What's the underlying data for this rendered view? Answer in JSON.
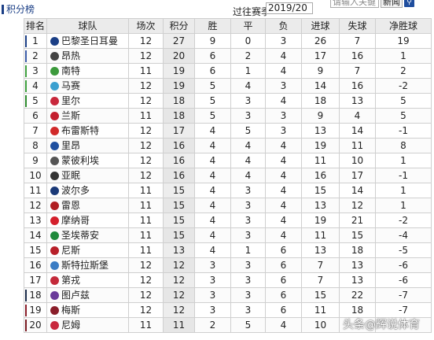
{
  "header": {
    "title": "积分榜",
    "season_label": "过往赛季",
    "season_value": "2019/20",
    "search_placeholder": "请输入关键",
    "news_label": "新闻",
    "search_button": "🔍"
  },
  "table": {
    "columns": [
      "排名",
      "球队",
      "场次",
      "积分",
      "胜",
      "平",
      "负",
      "进球",
      "失球",
      "净胜球"
    ],
    "rows": [
      {
        "rank": "1",
        "team": "巴黎圣日耳曼",
        "played": "12",
        "points": "27",
        "win": "9",
        "draw": "0",
        "loss": "3",
        "gf": "26",
        "ga": "7",
        "gd": "19",
        "marker": "#1b3f86",
        "badge": "#1b3f86"
      },
      {
        "rank": "2",
        "team": "昂热",
        "played": "12",
        "points": "20",
        "win": "6",
        "draw": "2",
        "loss": "4",
        "gf": "17",
        "ga": "16",
        "gd": "1",
        "marker": "#3b5ca8",
        "badge": "#444444"
      },
      {
        "rank": "3",
        "team": "南特",
        "played": "11",
        "points": "19",
        "win": "6",
        "draw": "1",
        "loss": "4",
        "gf": "9",
        "ga": "7",
        "gd": "2",
        "marker": "#3fa03f",
        "badge": "#3c9a3c"
      },
      {
        "rank": "4",
        "team": "马赛",
        "played": "12",
        "points": "19",
        "win": "5",
        "draw": "4",
        "loss": "3",
        "gf": "14",
        "ga": "16",
        "gd": "-2",
        "marker": "#3fa03f",
        "badge": "#3aa0d0"
      },
      {
        "rank": "5",
        "team": "里尔",
        "played": "12",
        "points": "18",
        "win": "5",
        "draw": "3",
        "loss": "4",
        "gf": "18",
        "ga": "13",
        "gd": "5",
        "marker": "#2e8b2e",
        "badge": "#c8283c"
      },
      {
        "rank": "6",
        "team": "兰斯",
        "played": "11",
        "points": "18",
        "win": "5",
        "draw": "3",
        "loss": "3",
        "gf": "9",
        "ga": "4",
        "gd": "5",
        "marker": "",
        "badge": "#c41e2e"
      },
      {
        "rank": "7",
        "team": "布雷斯特",
        "played": "12",
        "points": "17",
        "win": "4",
        "draw": "5",
        "loss": "3",
        "gf": "13",
        "ga": "14",
        "gd": "-1",
        "marker": "",
        "badge": "#d12a2a"
      },
      {
        "rank": "8",
        "team": "里昂",
        "played": "12",
        "points": "16",
        "win": "4",
        "draw": "4",
        "loss": "4",
        "gf": "19",
        "ga": "11",
        "gd": "8",
        "marker": "",
        "badge": "#1e4fa0"
      },
      {
        "rank": "9",
        "team": "蒙彼利埃",
        "played": "12",
        "points": "16",
        "win": "4",
        "draw": "4",
        "loss": "4",
        "gf": "11",
        "ga": "10",
        "gd": "1",
        "marker": "",
        "badge": "#555555"
      },
      {
        "rank": "10",
        "team": "亚眠",
        "played": "12",
        "points": "16",
        "win": "4",
        "draw": "4",
        "loss": "4",
        "gf": "16",
        "ga": "17",
        "gd": "-1",
        "marker": "",
        "badge": "#333333"
      },
      {
        "rank": "11",
        "team": "波尔多",
        "played": "11",
        "points": "15",
        "win": "4",
        "draw": "3",
        "loss": "4",
        "gf": "15",
        "ga": "14",
        "gd": "1",
        "marker": "",
        "badge": "#1b3a78"
      },
      {
        "rank": "12",
        "team": "雷恩",
        "played": "11",
        "points": "15",
        "win": "4",
        "draw": "3",
        "loss": "4",
        "gf": "13",
        "ga": "12",
        "gd": "1",
        "marker": "",
        "badge": "#b01e22"
      },
      {
        "rank": "13",
        "team": "摩纳哥",
        "played": "11",
        "points": "15",
        "win": "4",
        "draw": "3",
        "loss": "4",
        "gf": "19",
        "ga": "21",
        "gd": "-2",
        "marker": "",
        "badge": "#d4202c"
      },
      {
        "rank": "14",
        "team": "圣埃蒂安",
        "played": "11",
        "points": "15",
        "win": "4",
        "draw": "3",
        "loss": "4",
        "gf": "11",
        "ga": "15",
        "gd": "-4",
        "marker": "",
        "badge": "#1f8a3c"
      },
      {
        "rank": "15",
        "team": "尼斯",
        "played": "11",
        "points": "13",
        "win": "4",
        "draw": "1",
        "loss": "6",
        "gf": "13",
        "ga": "18",
        "gd": "-5",
        "marker": "",
        "badge": "#b8202a"
      },
      {
        "rank": "16",
        "team": "斯特拉斯堡",
        "played": "12",
        "points": "12",
        "win": "3",
        "draw": "3",
        "loss": "6",
        "gf": "7",
        "ga": "13",
        "gd": "-6",
        "marker": "",
        "badge": "#3a7cc4"
      },
      {
        "rank": "17",
        "team": "第戎",
        "played": "12",
        "points": "12",
        "win": "3",
        "draw": "3",
        "loss": "6",
        "gf": "7",
        "ga": "13",
        "gd": "-6",
        "marker": "",
        "badge": "#c42a3a"
      },
      {
        "rank": "18",
        "team": "图卢兹",
        "played": "12",
        "points": "12",
        "win": "3",
        "draw": "3",
        "loss": "6",
        "gf": "15",
        "ga": "22",
        "gd": "-7",
        "marker": "#1b2b4a",
        "badge": "#6a3a9a"
      },
      {
        "rank": "19",
        "team": "梅斯",
        "played": "12",
        "points": "12",
        "win": "3",
        "draw": "3",
        "loss": "6",
        "gf": "11",
        "ga": "18",
        "gd": "-7",
        "marker": "#8a1e2a",
        "badge": "#8a1e2a"
      },
      {
        "rank": "20",
        "team": "尼姆",
        "played": "11",
        "points": "11",
        "win": "2",
        "draw": "5",
        "loss": "4",
        "gf": "10",
        "ga": "",
        "gd": "",
        "marker": "#7a1a22",
        "badge": "#c8283c"
      }
    ]
  },
  "watermark": "头条@辉说体育"
}
